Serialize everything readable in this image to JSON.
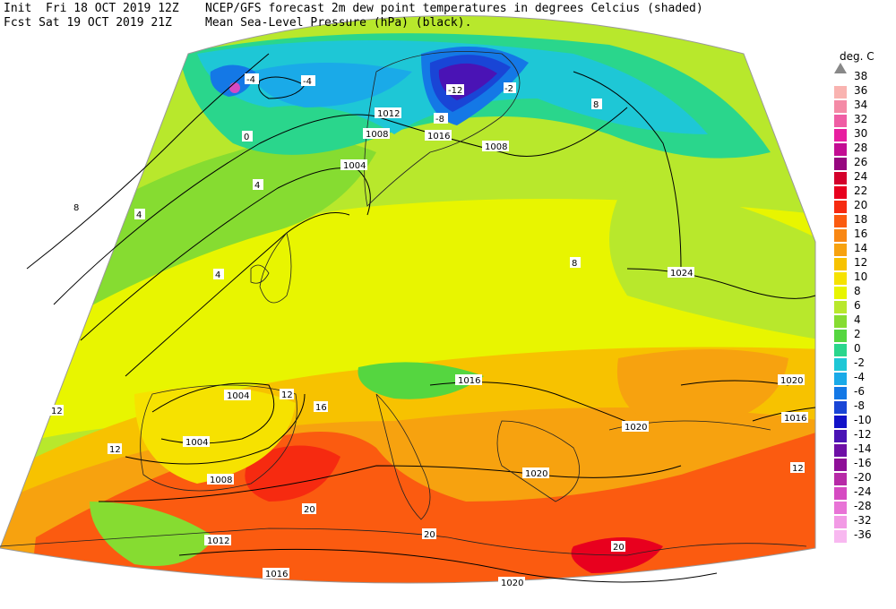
{
  "header": {
    "init_label": "Init",
    "init_value": "Fri 18 OCT 2019 12Z",
    "fcst_label": "Fcst",
    "fcst_value": "Sat 19 OCT 2019 21Z",
    "title_line1": "NCEP/GFS forecast 2m dew point temperatures in degrees Celcius (shaded)",
    "title_line2": "Mean Sea-Level Pressure (hPa) (black)."
  },
  "legend": {
    "unit": "deg. C",
    "entries": [
      {
        "label": "38",
        "color": "#888888"
      },
      {
        "label": "36",
        "color": "#f9b3b0"
      },
      {
        "label": "34",
        "color": "#f48aa6"
      },
      {
        "label": "32",
        "color": "#ef5da4"
      },
      {
        "label": "30",
        "color": "#e81ea0"
      },
      {
        "label": "28",
        "color": "#c30d93"
      },
      {
        "label": "26",
        "color": "#96077f"
      },
      {
        "label": "24",
        "color": "#d4002b"
      },
      {
        "label": "22",
        "color": "#e8001e"
      },
      {
        "label": "20",
        "color": "#f62a10"
      },
      {
        "label": "18",
        "color": "#fb5b10"
      },
      {
        "label": "16",
        "color": "#f98713"
      },
      {
        "label": "14",
        "color": "#f7a20f"
      },
      {
        "label": "12",
        "color": "#f7c200"
      },
      {
        "label": "10",
        "color": "#f6e200"
      },
      {
        "label": "8",
        "color": "#e8f500"
      },
      {
        "label": "6",
        "color": "#b8e82c"
      },
      {
        "label": "4",
        "color": "#86dc31"
      },
      {
        "label": "2",
        "color": "#55d640"
      },
      {
        "label": "0",
        "color": "#2ad68c"
      },
      {
        "label": "-2",
        "color": "#1ec7d6"
      },
      {
        "label": "-4",
        "color": "#1aaae8"
      },
      {
        "label": "-6",
        "color": "#1478e6"
      },
      {
        "label": "-8",
        "color": "#1945d6"
      },
      {
        "label": "-10",
        "color": "#1212c8"
      },
      {
        "label": "-12",
        "color": "#4a13b5"
      },
      {
        "label": "-14",
        "color": "#6e0fa6"
      },
      {
        "label": "-16",
        "color": "#8e0f98"
      },
      {
        "label": "-20",
        "color": "#b72aa7"
      },
      {
        "label": "-24",
        "color": "#d64ac2"
      },
      {
        "label": "-28",
        "color": "#e874d6"
      },
      {
        "label": "-32",
        "color": "#f29ae5"
      },
      {
        "label": "-36",
        "color": "#f8b8f0"
      }
    ]
  },
  "isobar_labels": [
    "1012",
    "1008",
    "1016",
    "1008",
    "1004",
    "1024",
    "1016",
    "1020",
    "1016",
    "1004",
    "1004",
    "1008",
    "1012",
    "1016",
    "1020",
    "1020",
    "1020"
  ],
  "dewpoint_labels": [
    "-4",
    "-4",
    "-12",
    "-8",
    "0",
    "4",
    "4",
    "8",
    "12",
    "12",
    "16",
    "20",
    "20",
    "20",
    "12",
    "12",
    "8",
    "4",
    "8",
    "-2"
  ]
}
